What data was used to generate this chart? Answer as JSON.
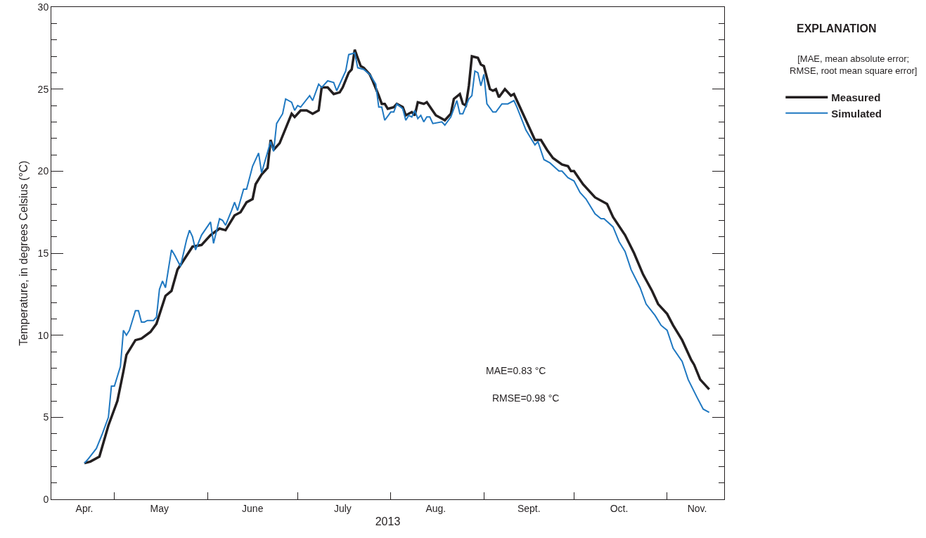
{
  "chart_data": {
    "type": "line",
    "xlabel": "2013",
    "ylabel": "Temperature, in degrees Celsius (°C)",
    "legend_title": "EXPLANATION",
    "annotations": [
      "[MAE, mean absolute error;\nRMSE, root mean square error]",
      "MAE=0.83 °C",
      "RMSE=0.98 °C"
    ],
    "xlim": [
      "2013-04-10",
      "2013-11-20"
    ],
    "xticks": [
      {
        "value": "2013-04-21",
        "label": "Apr."
      },
      {
        "value": "2013-05-01",
        "label": null
      },
      {
        "value": "2013-05-16",
        "label": "May"
      },
      {
        "value": "2013-06-01",
        "label": null
      },
      {
        "value": "2013-06-16",
        "label": "June"
      },
      {
        "value": "2013-07-01",
        "label": null
      },
      {
        "value": "2013-07-16",
        "label": "July"
      },
      {
        "value": "2013-08-01",
        "label": null
      },
      {
        "value": "2013-08-16",
        "label": "Aug."
      },
      {
        "value": "2013-09-01",
        "label": null
      },
      {
        "value": "2013-09-16",
        "label": "Sept."
      },
      {
        "value": "2013-10-01",
        "label": null
      },
      {
        "value": "2013-10-16",
        "label": "Oct."
      },
      {
        "value": "2013-11-01",
        "label": null
      },
      {
        "value": "2013-11-11",
        "label": "Nov."
      }
    ],
    "ylim": [
      0,
      30
    ],
    "yticks": [
      0,
      {
        "value": 1,
        "label": null
      },
      {
        "value": 2,
        "label": null
      },
      {
        "value": 3,
        "label": null
      },
      {
        "value": 4,
        "label": null
      },
      5,
      {
        "value": 6,
        "label": null
      },
      {
        "value": 7,
        "label": null
      },
      {
        "value": 8,
        "label": null
      },
      {
        "value": 9,
        "label": null
      },
      10,
      {
        "value": 11,
        "label": null
      },
      {
        "value": 12,
        "label": null
      },
      {
        "value": 13,
        "label": null
      },
      {
        "value": 14,
        "label": null
      },
      15,
      {
        "value": 16,
        "label": null
      },
      {
        "value": 17,
        "label": null
      },
      {
        "value": 18,
        "label": null
      },
      {
        "value": 19,
        "label": null
      },
      20,
      {
        "value": 21,
        "label": null
      },
      {
        "value": 22,
        "label": null
      },
      {
        "value": 23,
        "label": null
      },
      {
        "value": 24,
        "label": null
      },
      25,
      {
        "value": 26,
        "label": null
      },
      {
        "value": 27,
        "label": null
      },
      {
        "value": 28,
        "label": null
      },
      {
        "value": 29,
        "label": null
      },
      30
    ],
    "grid": false,
    "legend": "top right",
    "marker": "none",
    "line_style": "solid",
    "series": [
      {
        "name": "Measured",
        "color": "#231f20",
        "x": [
          "2013-04-21",
          "2013-04-23",
          "2013-04-26",
          "2013-04-29",
          "2013-05-02",
          "2013-05-04",
          "2013-05-05",
          "2013-05-08",
          "2013-05-10",
          "2013-05-13",
          "2013-05-15",
          "2013-05-18",
          "2013-05-20",
          "2013-05-22",
          "2013-05-27",
          "2013-05-30",
          "2013-06-02",
          "2013-06-05",
          "2013-06-07",
          "2013-06-10",
          "2013-06-12",
          "2013-06-14",
          "2013-06-16",
          "2013-06-17",
          "2013-06-19",
          "2013-06-21",
          "2013-06-22",
          "2013-06-23",
          "2013-06-25",
          "2013-06-29",
          "2013-06-30",
          "2013-07-02",
          "2013-07-04",
          "2013-07-06",
          "2013-07-08",
          "2013-07-09",
          "2013-07-11",
          "2013-07-13",
          "2013-07-15",
          "2013-07-16",
          "2013-07-18",
          "2013-07-19",
          "2013-07-20",
          "2013-07-22",
          "2013-07-23",
          "2013-07-25",
          "2013-07-26",
          "2013-07-28",
          "2013-07-29",
          "2013-07-30",
          "2013-07-31",
          "2013-08-02",
          "2013-08-03",
          "2013-08-05",
          "2013-08-06",
          "2013-08-08",
          "2013-08-09",
          "2013-08-10",
          "2013-08-12",
          "2013-08-13",
          "2013-08-16",
          "2013-08-17",
          "2013-08-19",
          "2013-08-21",
          "2013-08-22",
          "2013-08-24",
          "2013-08-25",
          "2013-08-26",
          "2013-08-27",
          "2013-08-28",
          "2013-08-30",
          "2013-08-31",
          "2013-09-01",
          "2013-09-03",
          "2013-09-04",
          "2013-09-05",
          "2013-09-06",
          "2013-09-08",
          "2013-09-10",
          "2013-09-11",
          "2013-09-15",
          "2013-09-18",
          "2013-09-20",
          "2013-09-22",
          "2013-09-24",
          "2013-09-27",
          "2013-09-29",
          "2013-09-30",
          "2013-10-01",
          "2013-10-04",
          "2013-10-08",
          "2013-10-12",
          "2013-10-14",
          "2013-10-18",
          "2013-10-21",
          "2013-10-24",
          "2013-10-27",
          "2013-10-29",
          "2013-11-01",
          "2013-11-03",
          "2013-11-06",
          "2013-11-09",
          "2013-11-10",
          "2013-11-12",
          "2013-11-15"
        ],
        "values": [
          2.2,
          2.3,
          2.6,
          4.5,
          6.0,
          7.8,
          8.8,
          9.7,
          9.8,
          10.2,
          10.7,
          12.4,
          12.7,
          14.0,
          15.4,
          15.5,
          16.1,
          16.5,
          16.4,
          17.3,
          17.5,
          18.1,
          18.3,
          19.2,
          19.8,
          20.2,
          21.9,
          21.3,
          21.7,
          23.5,
          23.3,
          23.7,
          23.7,
          23.5,
          23.7,
          25.1,
          25.1,
          24.7,
          24.8,
          25.1,
          26.0,
          26.2,
          27.4,
          26.4,
          26.3,
          25.9,
          25.5,
          24.6,
          24.1,
          24.1,
          23.8,
          23.9,
          24.1,
          23.9,
          23.4,
          23.6,
          23.4,
          24.2,
          24.1,
          24.2,
          23.4,
          23.3,
          23.1,
          23.5,
          24.4,
          24.7,
          24.1,
          24.0,
          25.2,
          27.0,
          26.9,
          26.5,
          26.4,
          25.0,
          24.9,
          25.0,
          24.5,
          25.0,
          24.6,
          24.7,
          23.1,
          21.9,
          21.9,
          21.3,
          20.8,
          20.4,
          20.3,
          20.0,
          20.0,
          19.2,
          18.4,
          18.0,
          17.2,
          16.1,
          15.0,
          13.7,
          12.7,
          11.9,
          11.3,
          10.6,
          9.7,
          8.5,
          8.2,
          7.3,
          6.7
        ]
      },
      {
        "name": "Simulated",
        "color": "#1f78c1",
        "x": [
          "2013-04-21",
          "2013-04-22",
          "2013-04-25",
          "2013-04-27",
          "2013-04-29",
          "2013-04-30",
          "2013-05-01",
          "2013-05-03",
          "2013-05-04",
          "2013-05-05",
          "2013-05-06",
          "2013-05-08",
          "2013-05-09",
          "2013-05-10",
          "2013-05-11",
          "2013-05-12",
          "2013-05-14",
          "2013-05-15",
          "2013-05-16",
          "2013-05-17",
          "2013-05-18",
          "2013-05-20",
          "2013-05-21",
          "2013-05-23",
          "2013-05-25",
          "2013-05-26",
          "2013-05-27",
          "2013-05-28",
          "2013-05-30",
          "2013-06-02",
          "2013-06-03",
          "2013-06-05",
          "2013-06-06",
          "2013-06-07",
          "2013-06-09",
          "2013-06-10",
          "2013-06-11",
          "2013-06-13",
          "2013-06-14",
          "2013-06-15",
          "2013-06-16",
          "2013-06-18",
          "2013-06-19",
          "2013-06-22",
          "2013-06-23",
          "2013-06-24",
          "2013-06-26",
          "2013-06-27",
          "2013-06-29",
          "2013-06-30",
          "2013-07-01",
          "2013-07-02",
          "2013-07-05",
          "2013-07-06",
          "2013-07-08",
          "2013-07-09",
          "2013-07-11",
          "2013-07-13",
          "2013-07-14",
          "2013-07-17",
          "2013-07-18",
          "2013-07-20",
          "2013-07-21",
          "2013-07-23",
          "2013-07-25",
          "2013-07-27",
          "2013-07-28",
          "2013-07-29",
          "2013-07-30",
          "2013-08-01",
          "2013-08-02",
          "2013-08-03",
          "2013-08-05",
          "2013-08-06",
          "2013-08-07",
          "2013-08-08",
          "2013-08-09",
          "2013-08-10",
          "2013-08-11",
          "2013-08-12",
          "2013-08-13",
          "2013-08-14",
          "2013-08-15",
          "2013-08-18",
          "2013-08-19",
          "2013-08-21",
          "2013-08-23",
          "2013-08-24",
          "2013-08-25",
          "2013-08-27",
          "2013-08-28",
          "2013-08-29",
          "2013-08-30",
          "2013-08-31",
          "2013-09-01",
          "2013-09-02",
          "2013-09-04",
          "2013-09-05",
          "2013-09-07",
          "2013-09-09",
          "2013-09-11",
          "2013-09-12",
          "2013-09-15",
          "2013-09-18",
          "2013-09-19",
          "2013-09-21",
          "2013-09-23",
          "2013-09-26",
          "2013-09-27",
          "2013-09-29",
          "2013-10-01",
          "2013-10-03",
          "2013-10-05",
          "2013-10-08",
          "2013-10-10",
          "2013-10-11",
          "2013-10-14",
          "2013-10-16",
          "2013-10-18",
          "2013-10-20",
          "2013-10-23",
          "2013-10-25",
          "2013-10-28",
          "2013-10-30",
          "2013-11-01",
          "2013-11-03",
          "2013-11-06",
          "2013-11-08",
          "2013-11-11",
          "2013-11-13",
          "2013-11-15"
        ],
        "values": [
          2.2,
          2.4,
          3.1,
          4.0,
          5.0,
          6.9,
          6.9,
          8.1,
          10.3,
          10.0,
          10.3,
          11.5,
          11.5,
          10.8,
          10.8,
          10.9,
          10.9,
          11.1,
          12.8,
          13.3,
          12.9,
          15.2,
          14.9,
          14.2,
          15.8,
          16.4,
          16.0,
          15.2,
          16.1,
          16.9,
          15.6,
          17.1,
          17.0,
          16.7,
          17.6,
          18.1,
          17.6,
          18.9,
          18.9,
          19.6,
          20.3,
          21.1,
          19.9,
          21.8,
          21.2,
          22.9,
          23.5,
          24.4,
          24.2,
          23.7,
          24.0,
          23.9,
          24.6,
          24.3,
          25.3,
          25.1,
          25.5,
          25.4,
          24.9,
          26.1,
          27.1,
          27.2,
          26.3,
          26.2,
          25.9,
          25.3,
          23.9,
          23.9,
          23.1,
          23.6,
          23.6,
          24.1,
          23.8,
          23.1,
          23.4,
          23.3,
          23.7,
          23.2,
          23.4,
          23.0,
          23.3,
          23.3,
          22.9,
          23.0,
          22.8,
          23.3,
          24.3,
          23.5,
          23.5,
          24.4,
          24.6,
          26.1,
          26.0,
          25.2,
          25.9,
          24.1,
          23.6,
          23.6,
          24.1,
          24.1,
          24.3,
          23.9,
          22.5,
          21.6,
          21.8,
          20.7,
          20.5,
          20.0,
          20.0,
          19.6,
          19.4,
          18.7,
          18.3,
          17.4,
          17.1,
          17.1,
          16.6,
          15.7,
          15.1,
          14.0,
          12.9,
          11.9,
          11.2,
          10.6,
          10.3,
          9.2,
          8.4,
          7.3,
          6.2,
          5.5,
          5.3
        ]
      }
    ]
  }
}
